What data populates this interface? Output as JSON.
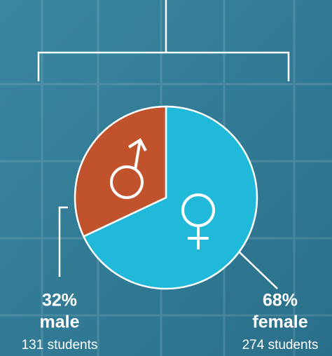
{
  "chart_data": {
    "type": "pie",
    "categories": [
      "male",
      "female"
    ],
    "values": [
      32,
      68
    ],
    "value_labels": [
      "32%",
      "68%"
    ],
    "annotations": [
      "131 students",
      "274 students"
    ],
    "colors": [
      "#c0532b",
      "#20b9d9"
    ]
  }
}
